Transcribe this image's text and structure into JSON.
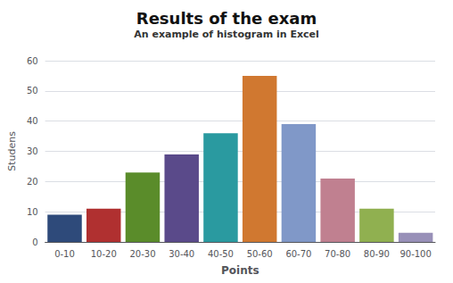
{
  "chart_data": {
    "type": "bar",
    "title": "Results of the exam",
    "subtitle": "An example of histogram in Excel",
    "xlabel": "Points",
    "ylabel": "Studens",
    "categories": [
      "0-10",
      "10-20",
      "20-30",
      "30-40",
      "40-50",
      "50-60",
      "60-70",
      "70-80",
      "80-90",
      "90-100"
    ],
    "values": [
      9,
      11,
      23,
      29,
      36,
      55,
      39,
      21,
      11,
      3
    ],
    "colors": [
      "#2E4A7A",
      "#B03030",
      "#5A8C2A",
      "#5A4A8A",
      "#2A9AA0",
      "#D07830",
      "#8098C8",
      "#C08090",
      "#90B050",
      "#9890B8"
    ],
    "ylim": [
      0,
      60
    ],
    "yticks": [
      0,
      10,
      20,
      30,
      40,
      50,
      60
    ],
    "grid": true
  }
}
